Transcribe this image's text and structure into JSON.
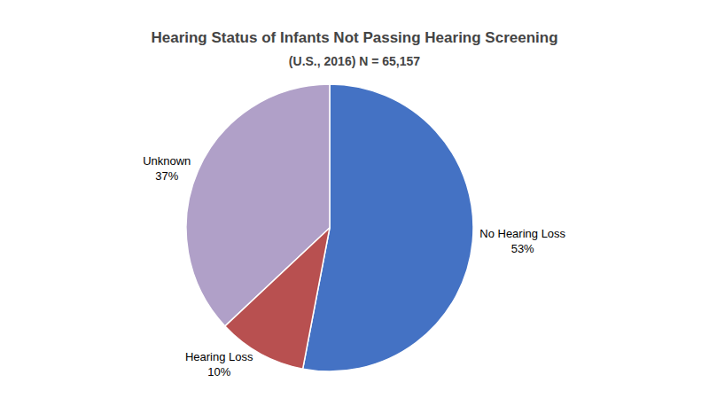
{
  "chart_data": {
    "type": "pie",
    "title": "Hearing Status of Infants Not Passing Hearing Screening",
    "subtitle": "(U.S., 2016) N = 65,157",
    "categories": [
      "No Hearing Loss",
      "Unknown",
      "Hearing Loss"
    ],
    "values": [
      53,
      37,
      10
    ],
    "value_labels": [
      "53%",
      "37%",
      "10%"
    ],
    "colors": [
      "#4472C4",
      "#B0A0C8",
      "#B85050"
    ],
    "data_labels": true,
    "legend": false
  }
}
